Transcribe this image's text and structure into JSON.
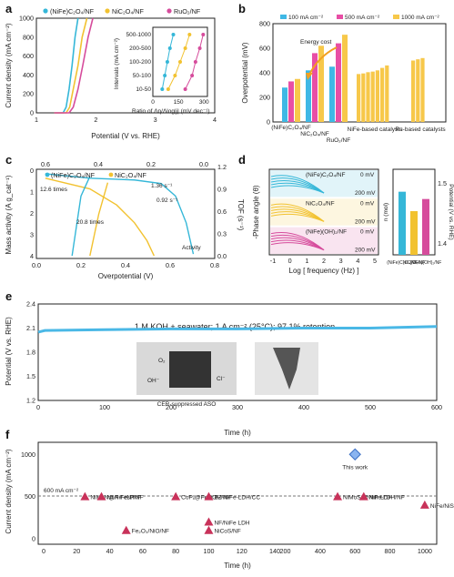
{
  "chart_data": [
    {
      "panel": "a",
      "type": "line",
      "xlabel": "Potential (V vs. RHE)",
      "ylabel": "Current density (mA cm⁻²)",
      "xticks": [
        "1",
        "2",
        "3",
        "4"
      ],
      "yticks": [
        "0",
        "200",
        "400",
        "600",
        "800",
        "1000"
      ],
      "xlim": [
        1,
        4
      ],
      "ylim": [
        0,
        1000
      ],
      "series": [
        {
          "name": "(NiFe)C₂O₄/NF",
          "color": "#35b7d8",
          "x": [
            1.3,
            1.45,
            1.5,
            1.55,
            1.6,
            1.65,
            1.7
          ],
          "y": [
            0,
            0,
            60,
            250,
            500,
            800,
            1050
          ]
        },
        {
          "name": "NiC₂O₄/NF",
          "color": "#f2c230",
          "x": [
            1.3,
            1.5,
            1.56,
            1.62,
            1.7,
            1.77,
            1.85
          ],
          "y": [
            0,
            0,
            60,
            250,
            500,
            800,
            1050
          ]
        },
        {
          "name": "RuO₂/NF",
          "color": "#d64c9c",
          "x": [
            1.3,
            1.55,
            1.62,
            1.7,
            1.78,
            1.87,
            1.95
          ],
          "y": [
            0,
            0,
            60,
            250,
            500,
            800,
            1050
          ]
        }
      ],
      "inset": {
        "xlabel": "Ratio of Δη/Δlog|j| (mV dec⁻¹)",
        "ylabel": "Intervals (mA cm⁻²)",
        "xticks": [
          "0",
          "150",
          "300"
        ],
        "categories": [
          "10-50",
          "50-100",
          "100-200",
          "200-500",
          "500-1000"
        ],
        "series": [
          {
            "name": "(NiFe)C₂O₄/NF",
            "color": "#35b7d8",
            "values": [
              55,
              70,
              85,
              100,
              120
            ]
          },
          {
            "name": "NiC₂O₄/NF",
            "color": "#f2c230",
            "values": [
              90,
              130,
              160,
              190,
              215
            ]
          },
          {
            "name": "RuO₂/NF",
            "color": "#d64c9c",
            "values": [
              190,
              230,
              250,
              275,
              295
            ]
          }
        ]
      }
    },
    {
      "panel": "b",
      "type": "bar",
      "ylabel": "Overpotential (mV)",
      "yticks": [
        "0",
        "200",
        "400",
        "600",
        "800"
      ],
      "ylim": [
        0,
        800
      ],
      "legend": [
        "100 mA cm⁻²",
        "500 mA cm⁻²",
        "1000 mA cm⁻²"
      ],
      "colors": [
        "#3fb8e5",
        "#e84ea5",
        "#f7c84a"
      ],
      "categories": [
        "(NiFe)C₂O₄/NF",
        "NiC₂O₄/NF",
        "RuO₂/NF"
      ],
      "series": [
        {
          "name": "100 mA cm⁻²",
          "values": [
            280,
            420,
            450
          ]
        },
        {
          "name": "500 mA cm⁻²",
          "values": [
            330,
            560,
            640
          ]
        },
        {
          "name": "1000 mA cm⁻²",
          "values": [
            350,
            620,
            710
          ]
        }
      ],
      "nife_based": [
        390,
        395,
        405,
        410,
        420,
        440,
        460
      ],
      "ru_based": [
        500,
        510,
        520
      ],
      "group_labels": [
        "NiFe-based catalysts",
        "Ru-based catalysts"
      ],
      "annotation": "Energy cost"
    },
    {
      "panel": "c",
      "type": "line",
      "xlabel": "Overpotential (V)",
      "ylabel": "Mass activity (A g_cat⁻¹)",
      "y2label": "TOF (s⁻¹)",
      "top_ticks": [
        "0.6",
        "0.4",
        "0.2",
        "0.0"
      ],
      "xticks": [
        "0.0",
        "0.2",
        "0.4",
        "0.6",
        "0.8"
      ],
      "yticks": [
        "0",
        "1",
        "2",
        "3",
        "4"
      ],
      "y2ticks": [
        "0.0",
        "0.3",
        "0.6",
        "0.9",
        "1.2"
      ],
      "legend": [
        "(NiFe)C₂O₄/NF",
        "NiC₂O₄/NF"
      ],
      "annotations": [
        "12.6 times",
        "20.8 times",
        "1.36 s⁻¹",
        "0.92 s⁻¹",
        "Activity"
      ]
    },
    {
      "panel": "d",
      "type": "line",
      "xlabel": "Log [ frequency (Hz) ]",
      "ylabel": "-Phase angle (θ)",
      "xticks": [
        "-1",
        "0",
        "1",
        "2",
        "3",
        "4",
        "5"
      ],
      "subpanels": [
        {
          "label": "(NiFe)C₂O₄/NF",
          "top": "0 mV",
          "bottom": "200 mV",
          "color": "#35b7d8"
        },
        {
          "label": "NiC₂O₄/NF",
          "top": "0 mV",
          "bottom": "200 mV",
          "color": "#f2c230"
        },
        {
          "label": "(NiFe)(OH)₂/NF",
          "top": "0 mV",
          "bottom": "200 mV",
          "color": "#d64c9c"
        }
      ],
      "side": {
        "ylabel": "n (mol)",
        "y2label": "Potential (V vs. RHE)",
        "y2ticks": [
          "1.4",
          "1.5"
        ],
        "categories": [
          "(NiFe)C₂O₄/NF",
          "NiC₂O₄/NF",
          "(NiFe)(OH)₂/NF"
        ],
        "values": [
          5.2,
          3.6,
          4.6
        ]
      }
    },
    {
      "panel": "e",
      "type": "line",
      "title": "1 M KOH + seawater; 1 A cm⁻² (25°C); 97.1% retention",
      "xlabel": "Time (h)",
      "ylabel": "Potential (V vs. RHE)",
      "xticks": [
        "0",
        "100",
        "200",
        "300",
        "400",
        "500",
        "600"
      ],
      "yticks": [
        "1.2",
        "1.5",
        "1.8",
        "2.1",
        "2.4"
      ],
      "xlim": [
        0,
        600
      ],
      "ylim": [
        1.2,
        2.4
      ],
      "series": [
        {
          "name": "",
          "color": "#4ab8e6",
          "x": [
            0,
            10,
            100,
            200,
            300,
            400,
            500,
            600
          ],
          "y": [
            2.05,
            2.07,
            2.08,
            2.09,
            2.09,
            2.1,
            2.1,
            2.12
          ]
        }
      ],
      "inset_caption": "CER-suppressed ASO",
      "inset_labels": [
        "O₂",
        "OH⁻",
        "Cl⁻"
      ]
    },
    {
      "panel": "f",
      "type": "scatter",
      "xlabel": "Time (h)",
      "ylabel": "Current density (mA cm⁻²)",
      "xticks": [
        "0",
        "20",
        "40",
        "60",
        "80",
        "100",
        "120",
        "140",
        "200",
        "400",
        "600",
        "800",
        "1000"
      ],
      "yticks": [
        "0",
        "500",
        "1000"
      ],
      "threshold_label": "600 mA cm⁻²",
      "highlight": {
        "label": "This work",
        "x": 600,
        "y": 1000
      },
      "points": [
        {
          "label": "NiMoN@NiFeN/NF",
          "x": 25,
          "y": 500
        },
        {
          "label": "Ni₂P-Fe₂P/NF",
          "x": 35,
          "y": 500
        },
        {
          "label": "Fe₂O₃/NiO/NF",
          "x": 50,
          "y": 100
        },
        {
          "label": "CoPₓ@FeOOH/NF",
          "x": 80,
          "y": 500
        },
        {
          "label": "BZ-NiFe-LDH/CC",
          "x": 100,
          "y": 500
        },
        {
          "label": "NF/NiFe LDH",
          "x": 100,
          "y": 200
        },
        {
          "label": "NiCoS/NF",
          "x": 100,
          "y": 100
        },
        {
          "label": "NiMoSₓ@NiFe-LDH/NF",
          "x": 500,
          "y": 500
        },
        {
          "label": "NiIr-LDH",
          "x": 650,
          "y": 500
        },
        {
          "label": "NiFe/NiSₓ/NF",
          "x": 1000,
          "y": 400
        }
      ]
    }
  ],
  "colors": {
    "cyan": "#35b7d8",
    "yellow": "#f2c230",
    "pink": "#d64c9c"
  },
  "panel_letters": [
    "a",
    "b",
    "c",
    "d",
    "e",
    "f"
  ]
}
